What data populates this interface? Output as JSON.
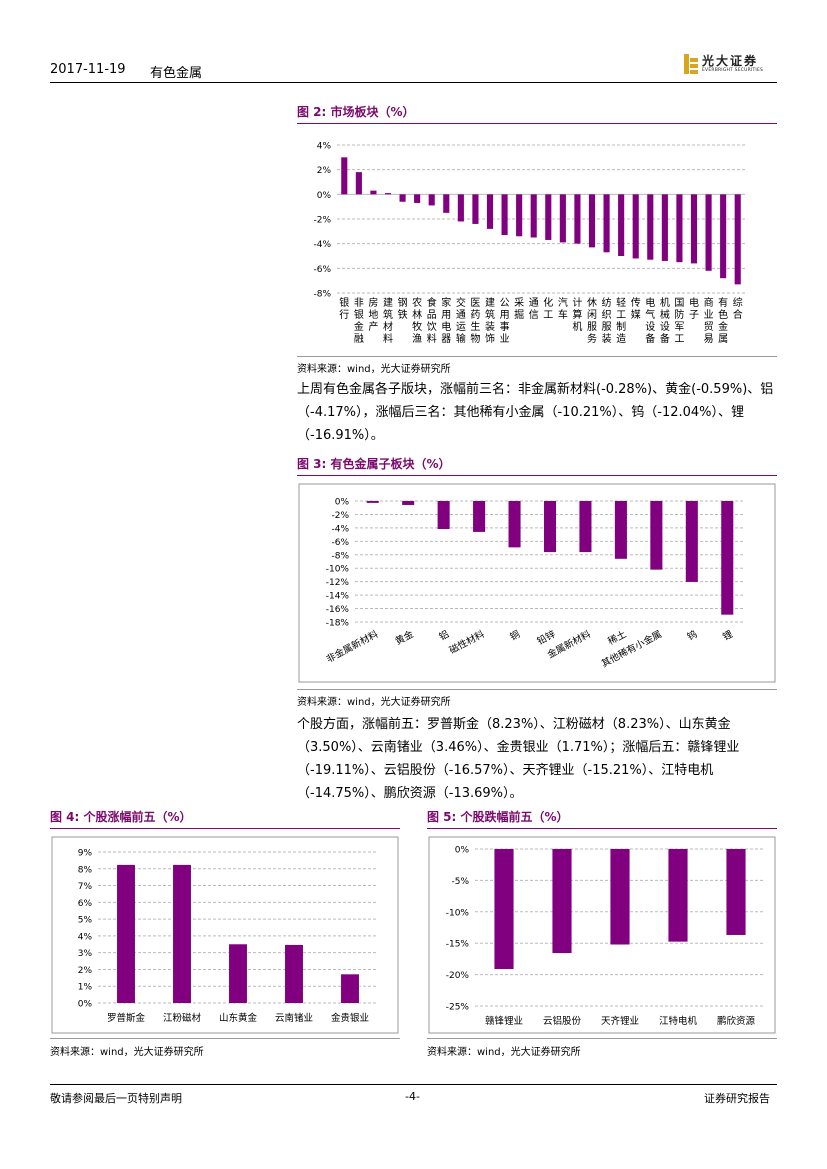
{
  "header": {
    "date": "2017-11-19",
    "sector": "有色金属",
    "logo_cn": "光大证券",
    "logo_en": "EVERBRIGHT SECURITIES"
  },
  "fig2": {
    "title": "图 2: 市场板块（%）",
    "source": "资料来源：wind，光大证券研究所",
    "chart_data": {
      "type": "bar",
      "categories": [
        "银行",
        "非银金融",
        "房地产",
        "建筑材料",
        "钢铁",
        "农林牧渔",
        "食品饮料",
        "家用电器",
        "交通运输",
        "医药生物",
        "建筑装饰",
        "公用事业",
        "采掘",
        "通信",
        "化工",
        "汽车",
        "计算机",
        "休闲服务",
        "纺织服装",
        "轻工制造",
        "传媒",
        "电气设备",
        "机械设备",
        "国防军工",
        "电子",
        "商业贸易",
        "有色金属",
        "综合"
      ],
      "values": [
        3.0,
        1.8,
        0.3,
        0.1,
        -0.6,
        -0.7,
        -0.9,
        -1.5,
        -2.2,
        -2.4,
        -2.8,
        -3.3,
        -3.4,
        -3.5,
        -3.7,
        -3.9,
        -4.0,
        -4.3,
        -4.7,
        -5.0,
        -5.2,
        -5.3,
        -5.4,
        -5.5,
        -5.6,
        -6.2,
        -6.8,
        -7.3
      ],
      "ylim": [
        -8,
        4
      ],
      "yticks": [
        4,
        2,
        0,
        -2,
        -4,
        -6,
        -8
      ],
      "ytick_labels": [
        "4%",
        "2%",
        "0%",
        "-2%",
        "-4%",
        "-6%",
        "-8%"
      ]
    }
  },
  "para1": "上周有色金属各子版块，涨幅前三名：非金属新材料(-0.28%)、黄金(-0.59%)、铝（-4.17%），涨幅后三名：其他稀有小金属（-10.21%）、钨（-12.04%）、锂（-16.91%）。",
  "fig3": {
    "title": "图 3: 有色金属子板块（%）",
    "source": "资料来源：wind，光大证券研究所",
    "chart_data": {
      "type": "bar",
      "categories": [
        "非金属新材料",
        "黄金",
        "铝",
        "磁性材料",
        "铜",
        "铅锌",
        "金属新材料",
        "稀土",
        "其他稀有小金属",
        "钨",
        "锂"
      ],
      "values": [
        -0.28,
        -0.59,
        -4.17,
        -4.6,
        -6.9,
        -7.6,
        -7.6,
        -8.6,
        -10.21,
        -12.04,
        -16.91
      ],
      "ylim": [
        -18,
        0
      ],
      "yticks": [
        0,
        -2,
        -4,
        -6,
        -8,
        -10,
        -12,
        -14,
        -16,
        -18
      ],
      "ytick_labels": [
        "0%",
        "-2%",
        "-4%",
        "-6%",
        "-8%",
        "-10%",
        "-12%",
        "-14%",
        "-16%",
        "-18%"
      ]
    }
  },
  "para2": "个股方面，涨幅前五：罗普斯金（8.23%）、江粉磁材（8.23%）、山东黄金（3.50%）、云南锗业（3.46%）、金贵银业（1.71%）；涨幅后五：赣锋锂业（-19.11%）、云铝股份（-16.57%）、天齐锂业（-15.21%）、江特电机（-14.75%）、鹏欣资源（-13.69%）。",
  "fig4": {
    "title": "图 4: 个股涨幅前五（%）",
    "source": "资料来源：wind，光大证券研究所",
    "chart_data": {
      "type": "bar",
      "categories": [
        "罗普斯金",
        "江粉磁材",
        "山东黄金",
        "云南锗业",
        "金贵银业"
      ],
      "values": [
        8.23,
        8.23,
        3.5,
        3.46,
        1.71
      ],
      "ylim": [
        0,
        9
      ],
      "yticks": [
        9,
        8,
        7,
        6,
        5,
        4,
        3,
        2,
        1,
        0
      ],
      "ytick_labels": [
        "9%",
        "8%",
        "7%",
        "6%",
        "5%",
        "4%",
        "3%",
        "2%",
        "1%",
        "0%"
      ]
    }
  },
  "fig5": {
    "title": "图 5: 个股跌幅前五（%）",
    "source": "资料来源：wind，光大证券研究所",
    "chart_data": {
      "type": "bar",
      "categories": [
        "赣锋锂业",
        "云铝股份",
        "天齐锂业",
        "江特电机",
        "鹏欣资源"
      ],
      "values": [
        -19.11,
        -16.57,
        -15.21,
        -14.75,
        -13.69
      ],
      "ylim": [
        -25,
        0
      ],
      "yticks": [
        0,
        -5,
        -10,
        -15,
        -20,
        -25
      ],
      "ytick_labels": [
        "0%",
        "-5%",
        "-10%",
        "-15%",
        "-20%",
        "-25%"
      ]
    }
  },
  "footer": {
    "left": "敬请参阅最后一页特别声明",
    "page": "-4-",
    "right": "证券研究报告"
  },
  "colors": {
    "bar": "#800080",
    "title": "#7a0a6c",
    "grid": "#bbbbbb"
  }
}
